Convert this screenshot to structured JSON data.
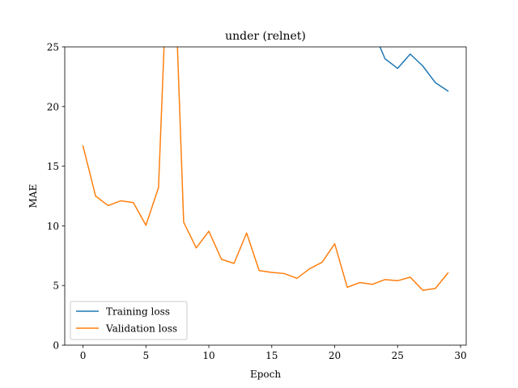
{
  "chart_data": {
    "type": "line",
    "title": "under (relnet)",
    "xlabel": "Epoch",
    "ylabel": "MAE",
    "xlim": [
      -1.45,
      30.45
    ],
    "ylim": [
      0,
      25
    ],
    "xticks": [
      0,
      5,
      10,
      15,
      20,
      25,
      30
    ],
    "yticks": [
      0,
      5,
      10,
      15,
      20,
      25
    ],
    "grid": false,
    "legend_position": "lower-left",
    "x": [
      0,
      1,
      2,
      3,
      4,
      5,
      6,
      7,
      8,
      9,
      10,
      11,
      12,
      13,
      14,
      15,
      16,
      17,
      18,
      19,
      20,
      21,
      22,
      23,
      24,
      25,
      26,
      27,
      28,
      29
    ],
    "series": [
      {
        "name": "Training loss",
        "color": "#1f77b4",
        "values": [
          null,
          null,
          null,
          null,
          null,
          null,
          null,
          null,
          null,
          null,
          null,
          null,
          null,
          null,
          null,
          null,
          null,
          null,
          null,
          null,
          null,
          null,
          27.5,
          26.5,
          24.0,
          23.2,
          24.4,
          23.4,
          22.0,
          21.3
        ]
      },
      {
        "name": "Validation loss",
        "color": "#ff7f0e",
        "values": [
          16.7,
          12.5,
          11.7,
          12.1,
          11.95,
          10.05,
          13.2,
          40.0,
          10.3,
          8.15,
          9.55,
          7.2,
          6.85,
          9.4,
          6.25,
          6.1,
          6.0,
          5.6,
          6.4,
          6.95,
          8.5,
          4.85,
          5.25,
          5.1,
          5.5,
          5.4,
          5.7,
          4.6,
          4.75,
          6.05
        ]
      }
    ]
  }
}
